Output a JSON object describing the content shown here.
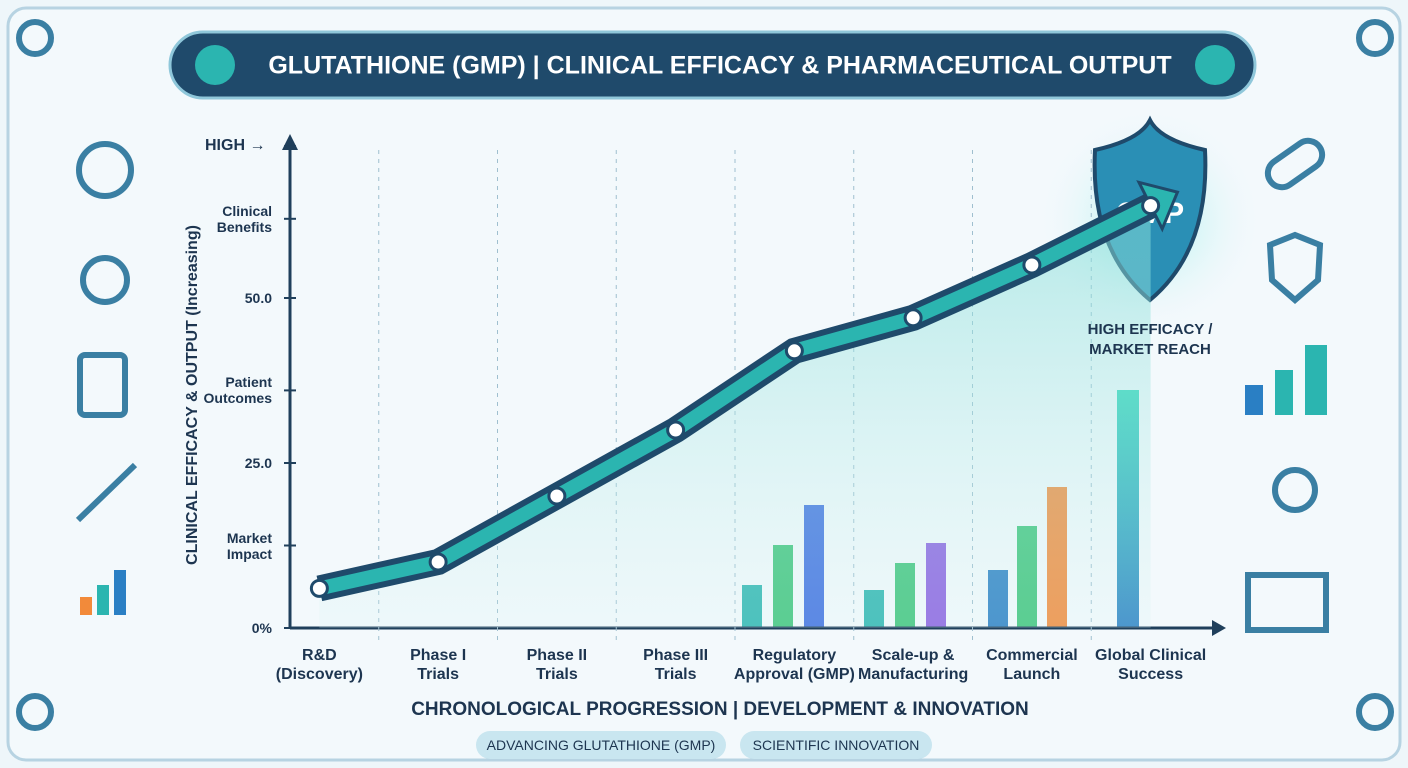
{
  "chart_data": {
    "type": "line",
    "title": "GLUTATHIONE (GMP) | CLINICAL EFFICACY & PHARMACEUTICAL OUTPUT",
    "y_label": "CLINICAL EFFICACY & OUTPUT (Increasing)",
    "x_label": "CHRONOLOGICAL PROGRESSION | DEVELOPMENT & INNOVATION",
    "categories": [
      "R&D\n(Discovery)",
      "Phase I\nTrials",
      "Phase II\nTrials",
      "Phase III\nTrials",
      "Regulatory\nApproval (GMP)",
      "Scale-up &\nManufacturing",
      "Commercial\nLaunch",
      "Global Clinical\nSuccess"
    ],
    "values": [
      6,
      10,
      20,
      30,
      42,
      47,
      55,
      64
    ],
    "color": "#2bb5b0",
    "ylim": [
      0,
      75
    ],
    "yticks": [
      {
        "value": 0,
        "label": "0%"
      },
      {
        "value": 12.5,
        "label": "Market\nImpact"
      },
      {
        "value": 25,
        "label": "25.0"
      },
      {
        "value": 36,
        "label": "Patient\nOutcomes"
      },
      {
        "value": 50,
        "label": "50.0"
      },
      {
        "value": 62,
        "label": "Clinical\nBenefits"
      },
      {
        "value": 73,
        "label": "HIGH →"
      }
    ],
    "grid": false,
    "annotations": [
      "HIGH EFFICACY /\nMARKET REACH",
      "GMP"
    ],
    "footer_tags": [
      "ADVANCING GLUTATHIONE (GMP)",
      "SCIENTIFIC INNOVATION"
    ]
  }
}
